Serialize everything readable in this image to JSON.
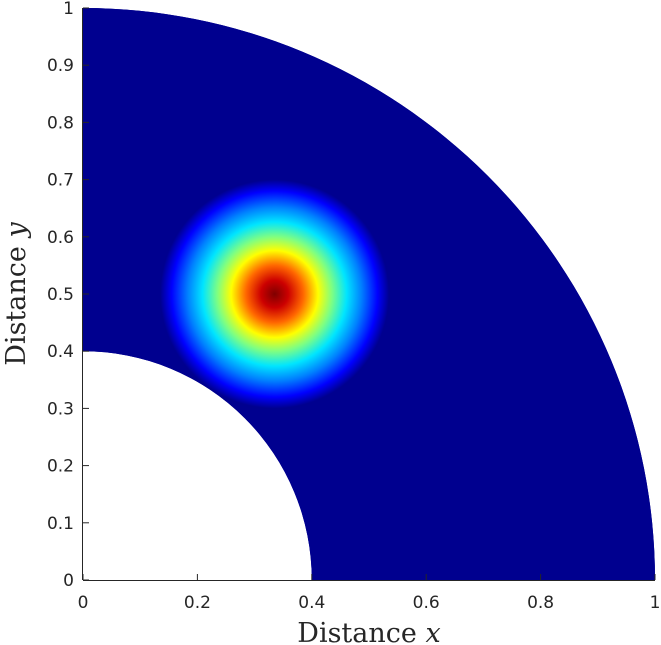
{
  "chart_data": {
    "type": "heatmap",
    "title": "",
    "xlabel": "Distance",
    "xlabel_var": "x",
    "ylabel": "Distance",
    "ylabel_var": "y",
    "xlim": [
      0,
      1
    ],
    "ylim": [
      0,
      1
    ],
    "xticks": [
      0,
      0.2,
      0.4,
      0.6,
      0.8,
      1
    ],
    "xtick_labels": [
      "0",
      "0.2",
      "0.4",
      "0.6",
      "0.8",
      "1"
    ],
    "yticks": [
      0,
      0.1,
      0.2,
      0.3,
      0.4,
      0.5,
      0.6,
      0.7,
      0.8,
      0.9,
      1
    ],
    "ytick_labels": [
      "0",
      "0.1",
      "0.2",
      "0.3",
      "0.4",
      "0.5",
      "0.6",
      "0.7",
      "0.8",
      "0.9",
      "1"
    ],
    "grid": false,
    "colormap": "jet",
    "background_color": "#00008f",
    "domain": {
      "shape": "quarter-annulus",
      "inner_radius": 0.4,
      "outer_radius": 1.0,
      "center": [
        0,
        0
      ]
    },
    "peak": {
      "center": [
        0.335,
        0.5
      ],
      "value_scale": "max at center, decaying radially",
      "approx_radius": 0.2
    },
    "color_stops": [
      {
        "t": 0.0,
        "color": "#7f0000"
      },
      {
        "t": 0.12,
        "color": "#cc0000"
      },
      {
        "t": 0.25,
        "color": "#ff6600"
      },
      {
        "t": 0.38,
        "color": "#ffff00"
      },
      {
        "t": 0.5,
        "color": "#80ff80"
      },
      {
        "t": 0.63,
        "color": "#00e5ff"
      },
      {
        "t": 0.76,
        "color": "#0080ff"
      },
      {
        "t": 0.9,
        "color": "#0000ff"
      },
      {
        "t": 1.0,
        "color": "#00008f"
      }
    ]
  }
}
